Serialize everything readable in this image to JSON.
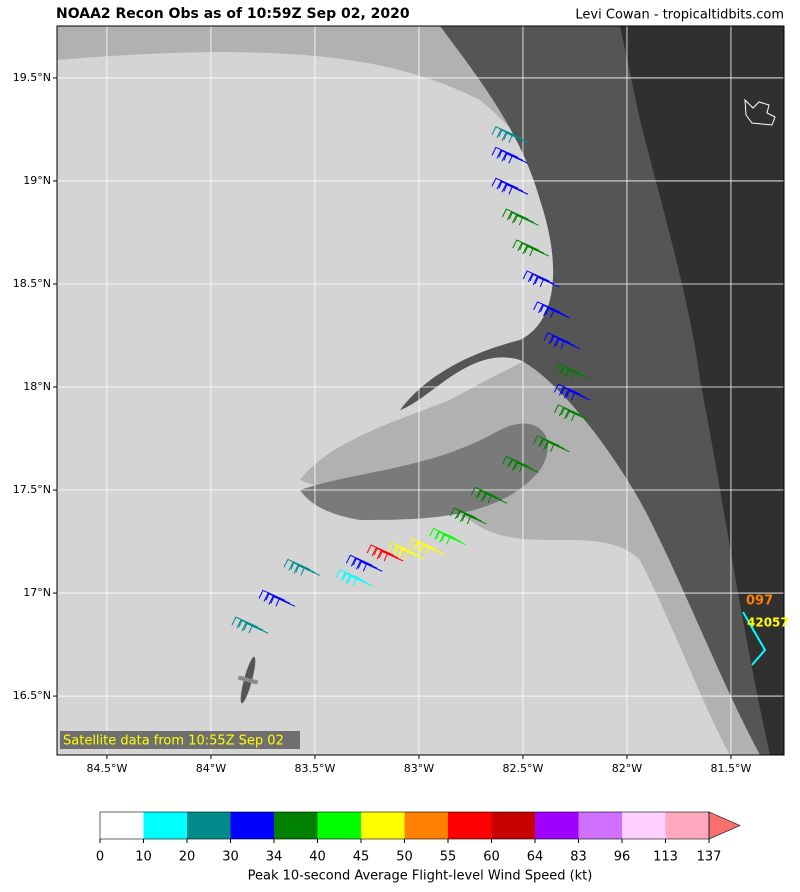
{
  "header": {
    "title": "NOAA2 Recon Obs as of 10:59Z Sep 02, 2020",
    "credit": "Levi Cowan - tropicaltidbits.com"
  },
  "map": {
    "xlim": [
      -84.74,
      -81.245
    ],
    "ylim": [
      16.214,
      19.752
    ],
    "xticks": [
      {
        "value": -84.5,
        "label": "84.5°W"
      },
      {
        "value": -84,
        "label": "84°W"
      },
      {
        "value": -83.5,
        "label": "83.5°W"
      },
      {
        "value": -83,
        "label": "83°W"
      },
      {
        "value": -82.5,
        "label": "82.5°W"
      },
      {
        "value": -82,
        "label": "82°W"
      },
      {
        "value": -81.5,
        "label": "81.5°W"
      }
    ],
    "yticks": [
      {
        "value": 16.5,
        "label": "16.5°N"
      },
      {
        "value": 17,
        "label": "17°N"
      },
      {
        "value": 17.5,
        "label": "17.5°N"
      },
      {
        "value": 18,
        "label": "18°N"
      },
      {
        "value": 18.5,
        "label": "18.5°N"
      },
      {
        "value": 19,
        "label": "19°N"
      },
      {
        "value": 19.5,
        "label": "19.5°N"
      }
    ],
    "satellite_label": "Satellite data from 10:55Z Sep 02",
    "station": {
      "id": "42057",
      "value": "097"
    },
    "observations": [
      {
        "lon": -83.75,
        "lat": 16.82,
        "kt": 25
      },
      {
        "lon": -83.62,
        "lat": 16.95,
        "kt": 32
      },
      {
        "lon": -83.5,
        "lat": 17.1,
        "kt": 25
      },
      {
        "lon": -83.25,
        "lat": 17.05,
        "kt": 15
      },
      {
        "lon": -83.2,
        "lat": 17.12,
        "kt": 31
      },
      {
        "lon": -83.1,
        "lat": 17.17,
        "kt": 57
      },
      {
        "lon": -83.0,
        "lat": 17.18,
        "kt": 47
      },
      {
        "lon": -82.9,
        "lat": 17.2,
        "kt": 48
      },
      {
        "lon": -82.8,
        "lat": 17.25,
        "kt": 42
      },
      {
        "lon": -82.7,
        "lat": 17.35,
        "kt": 38
      },
      {
        "lon": -82.6,
        "lat": 17.45,
        "kt": 37
      },
      {
        "lon": -82.45,
        "lat": 17.6,
        "kt": 38
      },
      {
        "lon": -82.3,
        "lat": 17.7,
        "kt": 36
      },
      {
        "lon": -82.2,
        "lat": 17.85,
        "kt": 35
      },
      {
        "lon": -82.2,
        "lat": 17.95,
        "kt": 32
      },
      {
        "lon": -82.2,
        "lat": 18.05,
        "kt": 36
      },
      {
        "lon": -82.25,
        "lat": 18.2,
        "kt": 31
      },
      {
        "lon": -82.3,
        "lat": 18.35,
        "kt": 33
      },
      {
        "lon": -82.35,
        "lat": 18.5,
        "kt": 32
      },
      {
        "lon": -82.4,
        "lat": 18.65,
        "kt": 35
      },
      {
        "lon": -82.45,
        "lat": 18.8,
        "kt": 37
      },
      {
        "lon": -82.5,
        "lat": 18.95,
        "kt": 32
      },
      {
        "lon": -82.5,
        "lat": 19.1,
        "kt": 31
      },
      {
        "lon": -82.5,
        "lat": 19.2,
        "kt": 27
      }
    ]
  },
  "colorbar": {
    "label": "Peak 10-second Average Flight-level Wind Speed (kt)",
    "bounds": [
      0,
      10,
      20,
      30,
      34,
      40,
      45,
      50,
      55,
      60,
      64,
      83,
      96,
      113,
      137
    ],
    "colors": [
      "#ffffff",
      "#00ffff",
      "#008b8b",
      "#0000ff",
      "#008000",
      "#00ff00",
      "#ffff00",
      "#ff7f00",
      "#ff0000",
      "#c80000",
      "#a000ff",
      "#d070ff",
      "#ffd0ff",
      "#ffa8c0",
      "#f87070"
    ]
  }
}
